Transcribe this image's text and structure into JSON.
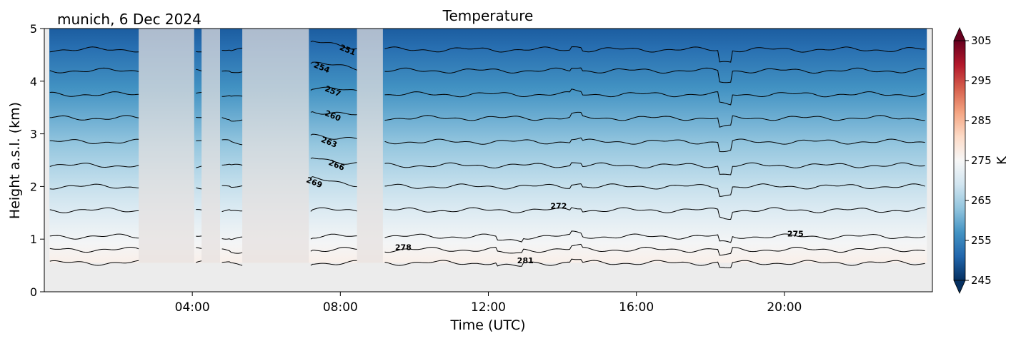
{
  "chart_data": {
    "type": "heatmap",
    "title": "Temperature",
    "subtitle": "munich, 6 Dec 2024",
    "xlabel": "Time (UTC)",
    "ylabel": "Height a.s.l. (km)",
    "xlim": [
      0,
      24
    ],
    "ylim": [
      0,
      5
    ],
    "x_ticks": [
      {
        "value": 4,
        "label": "04:00"
      },
      {
        "value": 8,
        "label": "08:00"
      },
      {
        "value": 12,
        "label": "12:00"
      },
      {
        "value": 16,
        "label": "16:00"
      },
      {
        "value": 20,
        "label": "20:00"
      }
    ],
    "y_ticks": [
      {
        "value": 0,
        "label": "0"
      },
      {
        "value": 1,
        "label": "1"
      },
      {
        "value": 2,
        "label": "2"
      },
      {
        "value": 3,
        "label": "3"
      },
      {
        "value": 4,
        "label": "4"
      },
      {
        "value": 5,
        "label": "5"
      }
    ],
    "colorbar": {
      "label": "K",
      "range": [
        245,
        305
      ],
      "colormap": "RdBu_r",
      "extend": "both",
      "ticks": [
        {
          "value": 245,
          "label": "245"
        },
        {
          "value": 255,
          "label": "255"
        },
        {
          "value": 265,
          "label": "265"
        },
        {
          "value": 275,
          "label": "275"
        },
        {
          "value": 285,
          "label": "285"
        },
        {
          "value": 295,
          "label": "295"
        },
        {
          "value": 305,
          "label": "305"
        }
      ]
    },
    "no_data_below_km": 0.55,
    "surface_temperature_K": 280,
    "lapse_rate_K_per_km": 6,
    "contours": [
      {
        "value": 281,
        "label": "281",
        "height_km": 0.55
      },
      {
        "value": 278,
        "label": "278",
        "height_km": 0.8
      },
      {
        "value": 275,
        "label": "275",
        "height_km": 1.05
      },
      {
        "value": 272,
        "label": "272",
        "height_km": 1.55
      },
      {
        "value": 269,
        "label": "269",
        "height_km": 2.0
      },
      {
        "value": 266,
        "label": "266",
        "height_km": 2.4
      },
      {
        "value": 263,
        "label": "263",
        "height_km": 2.85
      },
      {
        "value": 260,
        "label": "260",
        "height_km": 3.3
      },
      {
        "value": 257,
        "label": "257",
        "height_km": 3.75
      },
      {
        "value": 254,
        "label": "254",
        "height_km": 4.2
      },
      {
        "value": 251,
        "label": "251",
        "height_km": 4.6
      }
    ],
    "cloud_gaps": [
      {
        "start": 2.55,
        "end": 4.05
      },
      {
        "start": 4.25,
        "end": 4.75
      },
      {
        "start": 5.35,
        "end": 7.15
      },
      {
        "start": 8.45,
        "end": 9.15
      }
    ]
  }
}
